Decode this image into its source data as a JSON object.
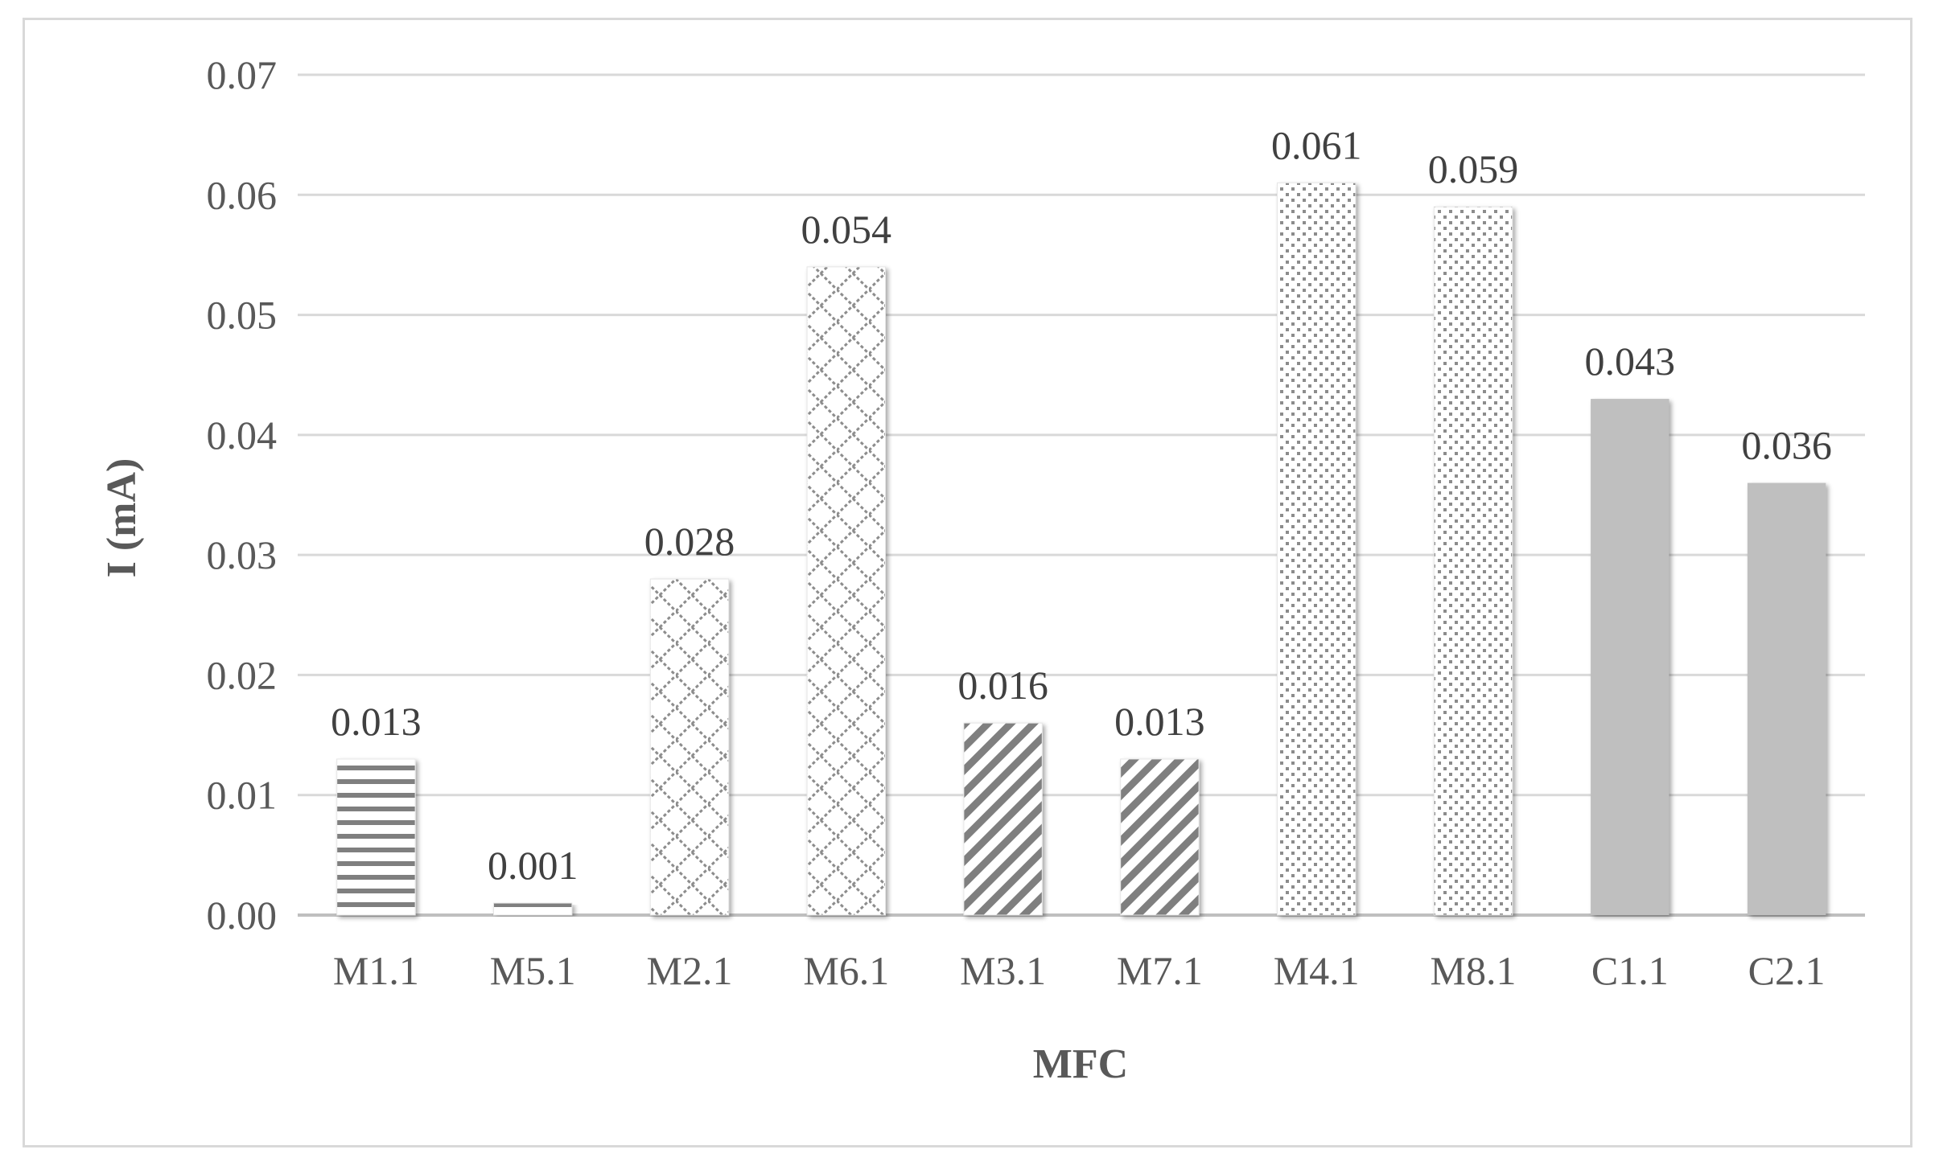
{
  "chart_data": {
    "type": "bar",
    "title": "",
    "xlabel": "MFC",
    "ylabel": "I (mA)",
    "ylim": [
      0,
      0.07
    ],
    "yticks": [
      "0.00",
      "0.01",
      "0.02",
      "0.03",
      "0.04",
      "0.05",
      "0.06",
      "0.07"
    ],
    "categories": [
      "M1.1",
      "M5.1",
      "M2.1",
      "M6.1",
      "M3.1",
      "M7.1",
      "M4.1",
      "M8.1",
      "C1.1",
      "C2.1"
    ],
    "values": [
      0.013,
      0.001,
      0.028,
      0.054,
      0.016,
      0.013,
      0.061,
      0.059,
      0.043,
      0.036
    ],
    "data_labels": [
      "0.013",
      "0.001",
      "0.028",
      "0.054",
      "0.016",
      "0.013",
      "0.061",
      "0.059",
      "0.043",
      "0.036"
    ],
    "fill_patterns": [
      "horizontal-lines",
      "horizontal-lines",
      "dashed-diagonal-lattice",
      "dashed-diagonal-lattice",
      "diagonal-stripes",
      "diagonal-stripes",
      "dots",
      "dots",
      "solid",
      "solid"
    ],
    "bar_color": "#808080",
    "solid_bar_color": "#bfbfbf",
    "grid": true,
    "gridline_color": "#d9d9d9",
    "legend": "none"
  }
}
